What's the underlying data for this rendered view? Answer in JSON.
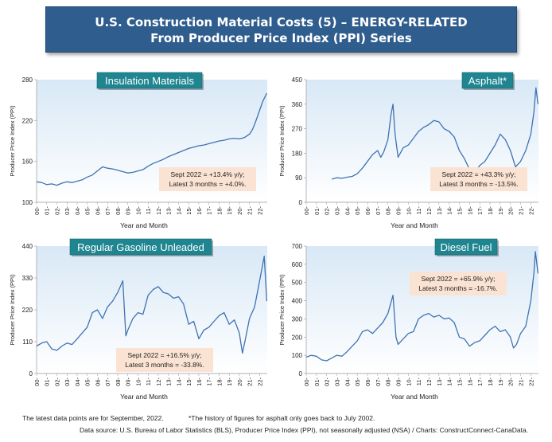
{
  "header": {
    "line1": "U.S. Construction Material Costs (5) – ENERGY-RELATED",
    "line2": "From Producer Price Index (PPI) Series"
  },
  "footer": {
    "note1": "The latest data points are for September, 2022.",
    "note2": "*The history of figures for asphalt only goes back to July 2002.",
    "source": "Data source: U.S. Bureau of Labor Statistics (BLS), Producer Price Index (PPI), not seasonally adjusted (NSA) / Charts: ConstructConnect-CanaData."
  },
  "colors": {
    "line": "#3f73b3",
    "title_badge": "#1f8590",
    "annotation_bg": "#fbe3d3",
    "plot_gradient_top": "#d8e8f6"
  },
  "chart_data": [
    {
      "type": "line",
      "title": "Insulation Materials",
      "xlabel": "Year and Month",
      "ylabel": "Producer Price Index (PPI)",
      "ylim": [
        100,
        280
      ],
      "yticks": [
        100,
        160,
        220,
        280
      ],
      "xticks": [
        "00-",
        "01-",
        "02-",
        "03-",
        "04-",
        "05-",
        "06-",
        "07-",
        "08-",
        "09-",
        "10-",
        "11-",
        "12-",
        "13-",
        "14-",
        "15-",
        "16-",
        "17-",
        "18-",
        "19-",
        "20-",
        "21-",
        "22-"
      ],
      "annotation": [
        "Sept 2022 = +13.4% y/y;",
        "Latest 3 months = +4.0%."
      ],
      "annotation_pos": "bottom-right",
      "series": [
        {
          "x": [
            2000,
            2000.5,
            2001,
            2001.5,
            2002,
            2002.5,
            2003,
            2003.5,
            2004,
            2004.5,
            2005,
            2005.5,
            2006,
            2006.5,
            2007,
            2007.5,
            2008,
            2008.5,
            2009,
            2009.5,
            2010,
            2010.5,
            2011,
            2011.5,
            2012,
            2012.5,
            2013,
            2013.5,
            2014,
            2014.5,
            2015,
            2015.5,
            2016,
            2016.5,
            2017,
            2017.5,
            2018,
            2018.5,
            2019,
            2019.5,
            2020,
            2020.5,
            2021,
            2021.3,
            2021.6,
            2022,
            2022.3,
            2022.7
          ],
          "y": [
            130,
            129,
            126,
            127,
            125,
            128,
            130,
            129,
            131,
            133,
            137,
            140,
            146,
            152,
            150,
            149,
            147,
            145,
            143,
            144,
            146,
            148,
            153,
            157,
            160,
            163,
            167,
            170,
            173,
            176,
            179,
            181,
            183,
            184,
            186,
            188,
            190,
            191,
            193,
            194,
            193,
            195,
            200,
            207,
            218,
            235,
            248,
            260
          ]
        }
      ]
    },
    {
      "type": "line",
      "title": "Asphalt*",
      "xlabel": "Year and Month",
      "ylabel": "Producer Price Index (PPI)",
      "ylim": [
        0,
        450
      ],
      "yticks": [
        0,
        90,
        180,
        270,
        360,
        450
      ],
      "xticks": [
        "00-",
        "01-",
        "02-",
        "03-",
        "04-",
        "05-",
        "06-",
        "07-",
        "08-",
        "09-",
        "10-",
        "11-",
        "12-",
        "13-",
        "14-",
        "15-",
        "16-",
        "17-",
        "18-",
        "19-",
        "20-",
        "21-",
        "22-"
      ],
      "annotation": [
        "Sept 2022 = +43.3% y/y;",
        "Latest 3 months = -13.5%."
      ],
      "annotation_pos": "bottom-right",
      "series": [
        {
          "x": [
            2002.5,
            2003,
            2003.5,
            2004,
            2004.5,
            2005,
            2005.5,
            2006,
            2006.5,
            2007,
            2007.3,
            2007.6,
            2008,
            2008.3,
            2008.5,
            2008.7,
            2009,
            2009.5,
            2010,
            2010.5,
            2011,
            2011.5,
            2012,
            2012.5,
            2013,
            2013.5,
            2014,
            2014.5,
            2015,
            2015.5,
            2016,
            2016.5,
            2017,
            2017.5,
            2018,
            2018.5,
            2019,
            2019.5,
            2020,
            2020.5,
            2021,
            2021.5,
            2022,
            2022.3,
            2022.5,
            2022.7
          ],
          "y": [
            85,
            90,
            88,
            92,
            95,
            105,
            125,
            150,
            175,
            190,
            165,
            185,
            230,
            320,
            360,
            250,
            165,
            200,
            210,
            235,
            260,
            275,
            285,
            300,
            295,
            270,
            260,
            240,
            190,
            160,
            120,
            110,
            135,
            150,
            180,
            210,
            250,
            230,
            190,
            130,
            150,
            190,
            250,
            330,
            420,
            360
          ]
        }
      ]
    },
    {
      "type": "line",
      "title": "Regular Gasoline Unleaded",
      "xlabel": "Year and Month",
      "ylabel": "Producer Price Index (PPI)",
      "ylim": [
        0,
        440
      ],
      "yticks": [
        0,
        110,
        220,
        330,
        440
      ],
      "xticks": [
        "00-",
        "01-",
        "02-",
        "03-",
        "04-",
        "05-",
        "06-",
        "07-",
        "08-",
        "09-",
        "10-",
        "11-",
        "12-",
        "13-",
        "14-",
        "15-",
        "16-",
        "17-",
        "18-",
        "19-",
        "20-",
        "21-",
        "22-"
      ],
      "annotation": [
        "Sept 2022 = +16.5% y/y;",
        "Latest 3 months = -33.8%."
      ],
      "annotation_pos": "bottom-center",
      "series": [
        {
          "x": [
            2000,
            2000.5,
            2001,
            2001.5,
            2002,
            2002.5,
            2003,
            2003.5,
            2004,
            2004.5,
            2005,
            2005.5,
            2006,
            2006.5,
            2007,
            2007.5,
            2008,
            2008.5,
            2008.8,
            2009,
            2009.5,
            2010,
            2010.5,
            2011,
            2011.5,
            2012,
            2012.5,
            2013,
            2013.5,
            2014,
            2014.5,
            2015,
            2015.5,
            2016,
            2016.5,
            2017,
            2017.5,
            2018,
            2018.5,
            2019,
            2019.5,
            2020,
            2020.3,
            2020.6,
            2021,
            2021.5,
            2022,
            2022.45,
            2022.7
          ],
          "y": [
            95,
            105,
            110,
            85,
            80,
            95,
            105,
            100,
            120,
            140,
            160,
            210,
            220,
            190,
            230,
            250,
            280,
            320,
            130,
            150,
            190,
            210,
            205,
            270,
            290,
            300,
            280,
            275,
            260,
            265,
            240,
            170,
            180,
            120,
            150,
            160,
            180,
            200,
            210,
            170,
            185,
            140,
            70,
            120,
            190,
            230,
            320,
            405,
            250
          ]
        }
      ]
    },
    {
      "type": "line",
      "title": "Diesel Fuel",
      "xlabel": "Year and Month",
      "ylabel": "Producer Price Index (PPI)",
      "ylim": [
        0,
        700
      ],
      "yticks": [
        0,
        100,
        200,
        300,
        400,
        500,
        600,
        700
      ],
      "xticks": [
        "00-",
        "01-",
        "02-",
        "03-",
        "04-",
        "05-",
        "06-",
        "07-",
        "08-",
        "09-",
        "10-",
        "11-",
        "12-",
        "13-",
        "14-",
        "15-",
        "16-",
        "17-",
        "18-",
        "19-",
        "20-",
        "21-",
        "22-"
      ],
      "annotation": [
        "Sept 2022 = +65.9% y/y;",
        "Latest 3 months = -16.7%."
      ],
      "annotation_pos": "top-right",
      "series": [
        {
          "x": [
            2000,
            2000.5,
            2001,
            2001.5,
            2002,
            2002.5,
            2003,
            2003.5,
            2004,
            2004.5,
            2005,
            2005.5,
            2006,
            2006.5,
            2007,
            2007.5,
            2008,
            2008.5,
            2008.8,
            2009,
            2009.5,
            2010,
            2010.5,
            2011,
            2011.5,
            2012,
            2012.5,
            2013,
            2013.5,
            2014,
            2014.5,
            2015,
            2015.5,
            2016,
            2016.5,
            2017,
            2017.5,
            2018,
            2018.5,
            2019,
            2019.5,
            2020,
            2020.3,
            2020.6,
            2021,
            2021.5,
            2022,
            2022.3,
            2022.45,
            2022.7
          ],
          "y": [
            90,
            100,
            95,
            75,
            70,
            85,
            100,
            95,
            120,
            150,
            180,
            230,
            240,
            220,
            250,
            280,
            330,
            430,
            200,
            160,
            190,
            220,
            230,
            300,
            320,
            330,
            310,
            320,
            300,
            305,
            280,
            200,
            190,
            150,
            170,
            180,
            210,
            240,
            260,
            230,
            240,
            200,
            140,
            160,
            220,
            260,
            400,
            550,
            670,
            550
          ]
        }
      ]
    }
  ]
}
